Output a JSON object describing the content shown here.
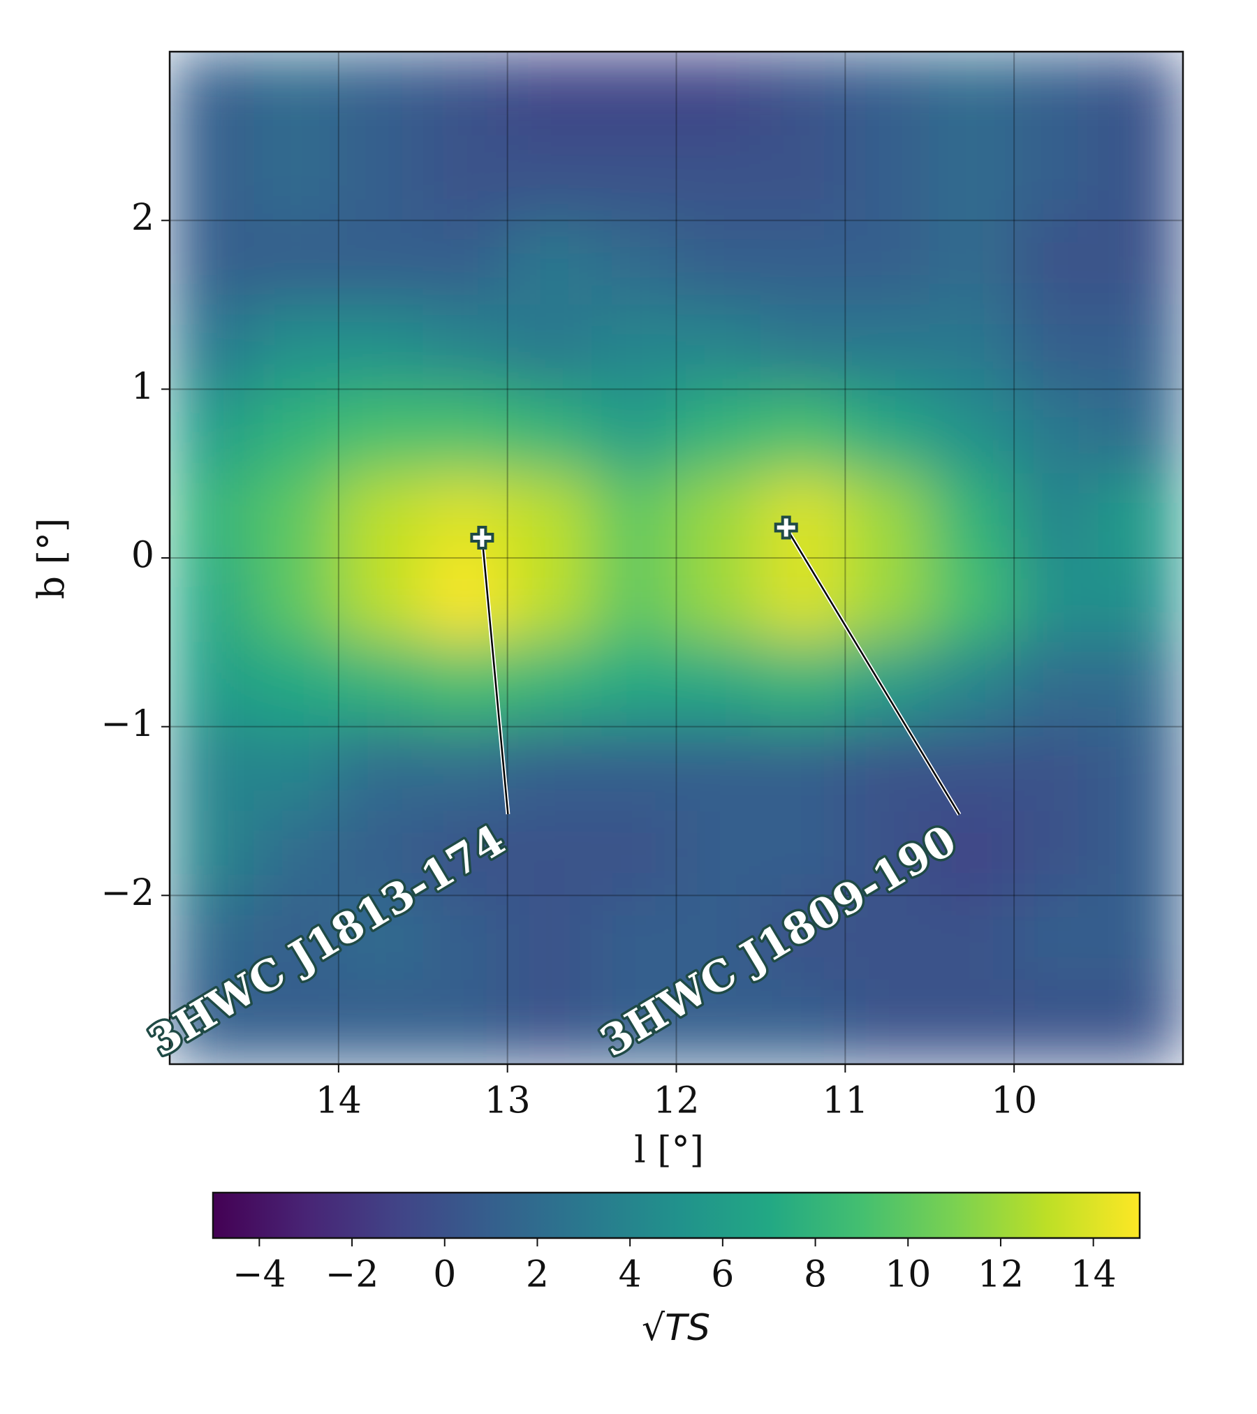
{
  "chart_data": {
    "type": "heatmap",
    "xlabel": "l [°]",
    "ylabel": "b [°]",
    "x": [
      14.75,
      14.25,
      13.75,
      13.25,
      12.75,
      12.25,
      11.75,
      11.25,
      10.75,
      10.25,
      9.75,
      9.25
    ],
    "y": [
      2.75,
      2.25,
      1.75,
      1.25,
      0.75,
      0.25,
      -0.25,
      -0.75,
      -1.25,
      -1.75,
      -2.25,
      -2.75
    ],
    "z": [
      [
        1,
        2,
        1,
        0,
        -1,
        -1,
        -1,
        0,
        1,
        2,
        1,
        0
      ],
      [
        1,
        2,
        1,
        0,
        0,
        0,
        0,
        0,
        1,
        2,
        1,
        0
      ],
      [
        1,
        1,
        1,
        1,
        3,
        2,
        1,
        1,
        1,
        2,
        0,
        0
      ],
      [
        3,
        5,
        5,
        4,
        3,
        4,
        4,
        3,
        3,
        3,
        1,
        1
      ],
      [
        6,
        8,
        9,
        9,
        8,
        6,
        8,
        9,
        7,
        5,
        3,
        2
      ],
      [
        8,
        10,
        13,
        14,
        13,
        10,
        12,
        14,
        12,
        8,
        4,
        6
      ],
      [
        7,
        10,
        13,
        15,
        13,
        10,
        12,
        14,
        12,
        9,
        5,
        5
      ],
      [
        6,
        7,
        8,
        9,
        8,
        7,
        7,
        8,
        6,
        4,
        2,
        2
      ],
      [
        4,
        4,
        2,
        2,
        1,
        1,
        1,
        1,
        0,
        0,
        0,
        1
      ],
      [
        4,
        2,
        1,
        0,
        0,
        0,
        1,
        1,
        0,
        -1,
        0,
        1
      ],
      [
        2,
        1,
        2,
        1,
        0,
        1,
        1,
        0,
        0,
        0,
        1,
        1
      ],
      [
        1,
        1,
        1,
        1,
        0,
        1,
        1,
        1,
        0,
        0,
        0,
        0
      ]
    ],
    "xlim": [
      15,
      9
    ],
    "ylim": [
      -3,
      3
    ],
    "xticks": [
      14,
      13,
      12,
      11,
      10
    ],
    "yticks": [
      2,
      1,
      0,
      {
        "value": -1,
        "label": "−1"
      },
      {
        "value": -2,
        "label": "−2"
      }
    ],
    "grid": true,
    "colormap": "viridis",
    "colorbar": {
      "label": "√TS",
      "lim": [
        -5,
        15
      ],
      "ticks": [
        {
          "value": -4,
          "label": "−4"
        },
        {
          "value": -2,
          "label": "−2"
        },
        0,
        2,
        4,
        6,
        8,
        10,
        12,
        14
      ]
    },
    "sources": [
      {
        "name": "3HWC J1813-174",
        "l": 13.15,
        "b": 0.12
      },
      {
        "name": "3HWC J1809-190",
        "l": 11.35,
        "b": 0.18
      }
    ]
  }
}
